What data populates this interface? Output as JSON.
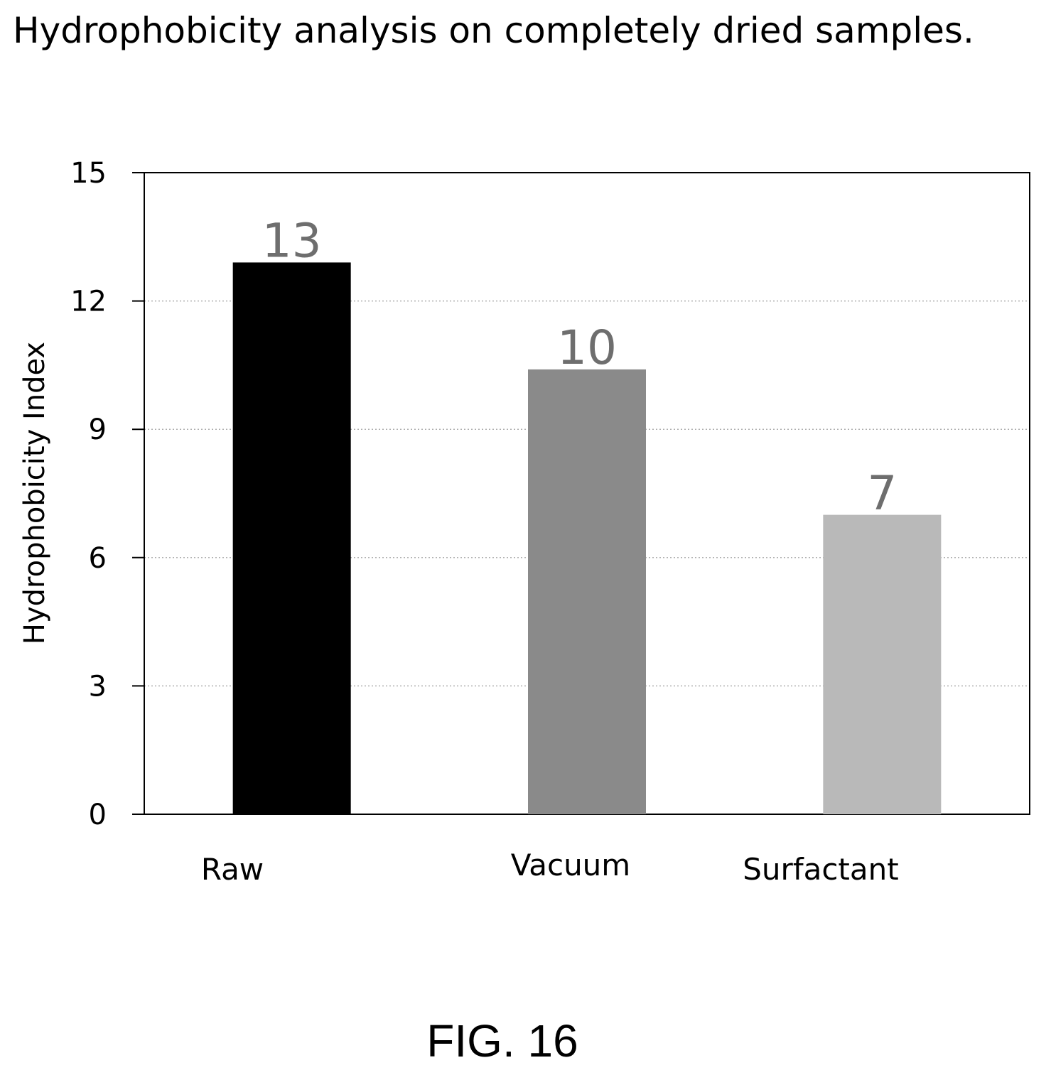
{
  "title": "Hydrophobicity analysis on completely dried samples.",
  "figure_label": "FIG. 16",
  "colors": {
    "raw_bar": "#000000",
    "vacuum_bar": "#8a8a8a",
    "surfactant_bar": "#b9b9b9",
    "data_label": "#6e6e6e",
    "gridline": "#b0b0b0"
  },
  "chart_data": {
    "type": "bar",
    "title": "",
    "categories": [
      "Raw",
      "Vacuum",
      "Surfactant"
    ],
    "series": [
      {
        "values": [
          12.9,
          10.4,
          7.0
        ],
        "data_labels": [
          "13",
          "10",
          "7"
        ]
      }
    ],
    "xlabel": "",
    "ylabel": "Hydrophobicity Index",
    "ylim": [
      0,
      15
    ],
    "yticks": [
      0,
      3,
      6,
      9,
      12,
      15
    ],
    "grid": true,
    "legend": "none"
  }
}
